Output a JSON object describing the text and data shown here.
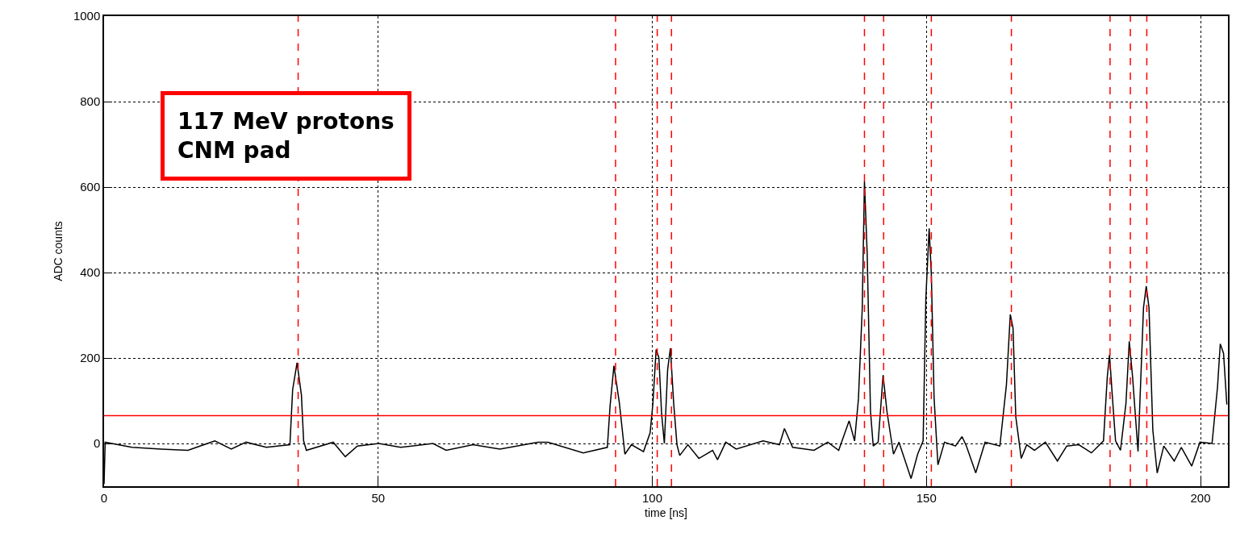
{
  "chart_data": {
    "type": "line",
    "xlabel": "time [ns]",
    "ylabel": "ADC counts",
    "xlim": [
      0,
      205
    ],
    "xticks": [
      0,
      50,
      100,
      150,
      200
    ],
    "ylim": [
      -100,
      1000
    ],
    "yticks": [
      0,
      200,
      400,
      600,
      800,
      1000
    ],
    "grid": true,
    "marker": "none",
    "line_style": "solid",
    "annotations": [
      "117 MeV protons\nCNM pad"
    ],
    "series": [
      {
        "color": "#000000",
        "x": [
          0,
          0.2,
          5.1,
          10.4,
          15.3,
          20.2,
          23.2,
          25.9,
          29.6,
          33.9,
          34.4,
          35.2,
          36.0,
          36.4,
          36.9,
          41.8,
          44.0,
          46.2,
          50.1,
          54.1,
          60.0,
          62.4,
          67.3,
          72.2,
          79.1,
          81.0,
          87.4,
          91.8,
          92.3,
          93.0,
          94.0,
          95.0,
          96.2,
          98.4,
          99.6,
          100.1,
          100.7,
          101.2,
          101.7,
          102.2,
          102.8,
          103.3,
          103.9,
          104.5,
          105.0,
          106.5,
          108.5,
          111.0,
          111.9,
          113.4,
          115.3,
          120.2,
          123.2,
          124.1,
          125.6,
          129.5,
          132.0,
          134.0,
          135.9,
          136.9,
          137.6,
          138.3,
          138.7,
          139.2,
          139.8,
          140.3,
          141.2,
          142.1,
          142.8,
          144.0,
          145.0,
          147.2,
          148.4,
          149.4,
          149.9,
          150.5,
          150.9,
          151.4,
          152.1,
          153.3,
          155.3,
          156.5,
          157.3,
          159.0,
          160.7,
          163.4,
          164.6,
          165.3,
          165.8,
          166.3,
          167.3,
          168.3,
          169.7,
          171.7,
          173.9,
          175.6,
          177.8,
          180.1,
          182.3,
          183.0,
          183.4,
          183.9,
          184.5,
          185.4,
          186.4,
          187.0,
          187.6,
          188.6,
          189.6,
          190.1,
          190.6,
          191.3,
          192.1,
          193.3,
          195.2,
          196.5,
          198.4,
          199.9,
          202.1,
          203.1,
          203.6,
          204.2,
          204.8
        ],
        "values": [
          -95,
          3,
          -9,
          -13,
          -16,
          6,
          -13,
          3,
          -9,
          -3,
          126,
          189,
          113,
          6,
          -16,
          3,
          -31,
          -6,
          0,
          -9,
          0,
          -16,
          -3,
          -13,
          3,
          3,
          -22,
          -9,
          88,
          182,
          94,
          -25,
          -3,
          -19,
          25,
          92,
          220,
          201,
          69,
          0,
          173,
          223,
          94,
          -3,
          -28,
          -3,
          -35,
          -16,
          -38,
          3,
          -13,
          6,
          -3,
          35,
          -9,
          -16,
          3,
          -16,
          53,
          6,
          104,
          318,
          613,
          443,
          75,
          -6,
          3,
          160,
          75,
          -25,
          3,
          -82,
          -25,
          6,
          340,
          503,
          396,
          107,
          -50,
          3,
          -6,
          16,
          -6,
          -69,
          3,
          -6,
          138,
          302,
          270,
          63,
          -35,
          -3,
          -16,
          3,
          -41,
          -6,
          -3,
          -22,
          6,
          157,
          208,
          113,
          6,
          -16,
          94,
          239,
          157,
          -19,
          318,
          368,
          318,
          31,
          -69,
          -6,
          -41,
          -9,
          -53,
          3,
          0,
          132,
          233,
          211,
          91
        ]
      }
    ],
    "ref_lines": [
      {
        "axis": "y",
        "value": 65,
        "color": "#ff0000",
        "line_style": "solid"
      },
      {
        "axis": "x",
        "value": 35.4,
        "color": "#ff0000",
        "line_style": "dashed"
      },
      {
        "axis": "x",
        "value": 93.3,
        "color": "#ff0000",
        "line_style": "dashed"
      },
      {
        "axis": "x",
        "value": 100.9,
        "color": "#ff0000",
        "line_style": "dashed"
      },
      {
        "axis": "x",
        "value": 103.5,
        "color": "#ff0000",
        "line_style": "dashed"
      },
      {
        "axis": "x",
        "value": 138.7,
        "color": "#ff0000",
        "line_style": "dashed"
      },
      {
        "axis": "x",
        "value": 142.2,
        "color": "#ff0000",
        "line_style": "dashed"
      },
      {
        "axis": "x",
        "value": 150.9,
        "color": "#ff0000",
        "line_style": "dashed"
      },
      {
        "axis": "x",
        "value": 165.5,
        "color": "#ff0000",
        "line_style": "dashed"
      },
      {
        "axis": "x",
        "value": 183.5,
        "color": "#ff0000",
        "line_style": "dashed"
      },
      {
        "axis": "x",
        "value": 187.2,
        "color": "#ff0000",
        "line_style": "dashed"
      },
      {
        "axis": "x",
        "value": 190.2,
        "color": "#ff0000",
        "line_style": "dashed"
      }
    ]
  }
}
